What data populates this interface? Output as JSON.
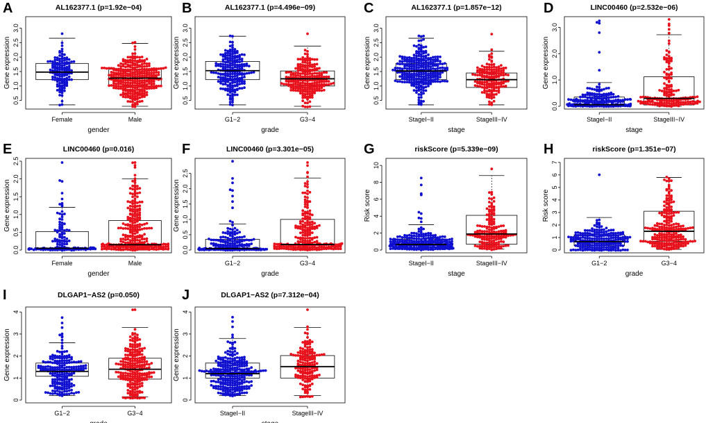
{
  "figure": {
    "colors": {
      "group1": "#1010d0",
      "group2": "#e8101a",
      "box": "#000000"
    },
    "chart_data": [
      {
        "panel": "A",
        "type": "boxplot-beeswarm",
        "title": "AL162377.1 (p=1.92e−04)",
        "xlabel": "gender",
        "ylabel": "Gene expression",
        "categories": [
          "Female",
          "Male"
        ],
        "ylim": [
          0.3,
          3.3
        ],
        "yticks": [
          0.5,
          1.0,
          1.5,
          2.0,
          2.5,
          3.0
        ],
        "yticklabels": [
          "0.5",
          "1.0",
          "1.5",
          "2.0",
          "2.5",
          "3.0"
        ],
        "series": [
          {
            "name": "Female",
            "box": {
              "min": 0.35,
              "q1": 1.22,
              "median": 1.48,
              "q3": 1.78,
              "max": 2.65
            },
            "points_min": 0.35,
            "points_max": 2.82,
            "n": 130
          },
          {
            "name": "Male",
            "box": {
              "min": 0.3,
              "q1": 1.0,
              "median": 1.27,
              "q3": 1.58,
              "max": 2.47
            },
            "points_min": 0.28,
            "points_max": 2.5,
            "n": 330
          }
        ]
      },
      {
        "panel": "B",
        "type": "boxplot-beeswarm",
        "title": "AL162377.1 (p=4.496e−09)",
        "xlabel": "grade",
        "ylabel": "Gene expression",
        "categories": [
          "G1−2",
          "G3−4"
        ],
        "ylim": [
          0.3,
          3.3
        ],
        "yticks": [
          0.5,
          1.0,
          1.5,
          2.0,
          2.5,
          3.0
        ],
        "yticklabels": [
          "0.5",
          "1.0",
          "1.5",
          "2.0",
          "2.5",
          "3.0"
        ],
        "series": [
          {
            "name": "G1−2",
            "box": {
              "min": 0.35,
              "q1": 1.22,
              "median": 1.53,
              "q3": 1.85,
              "max": 2.72
            },
            "points_min": 0.35,
            "points_max": 2.72,
            "n": 220
          },
          {
            "name": "G3−4",
            "box": {
              "min": 0.3,
              "q1": 1.0,
              "median": 1.25,
              "q3": 1.52,
              "max": 2.38
            },
            "points_min": 0.28,
            "points_max": 2.8,
            "n": 240
          }
        ]
      },
      {
        "panel": "C",
        "type": "boxplot-beeswarm",
        "title": "AL162377.1 (p=1.857e−12)",
        "xlabel": "stage",
        "ylabel": "Gene expression",
        "categories": [
          "StageI−II",
          "StageIII−IV"
        ],
        "ylim": [
          0.3,
          3.3
        ],
        "yticks": [
          0.5,
          1.0,
          1.5,
          2.0,
          2.5,
          3.0
        ],
        "yticklabels": [
          "0.5",
          "1.0",
          "1.5",
          "2.0",
          "2.5",
          "3.0"
        ],
        "series": [
          {
            "name": "StageI−II",
            "box": {
              "min": 0.35,
              "q1": 1.22,
              "median": 1.52,
              "q3": 1.78,
              "max": 2.65
            },
            "points_min": 0.35,
            "points_max": 2.72,
            "n": 300
          },
          {
            "name": "StageIII−IV",
            "box": {
              "min": 0.35,
              "q1": 0.95,
              "median": 1.22,
              "q3": 1.45,
              "max": 2.2
            },
            "points_min": 0.35,
            "points_max": 2.8,
            "n": 170
          }
        ]
      },
      {
        "panel": "D",
        "type": "boxplot-beeswarm",
        "title": "LINC00460 (p=2.532e−06)",
        "xlabel": "stage",
        "ylabel": "Gene expression",
        "categories": [
          "StageI−II",
          "StageIII−IV"
        ],
        "ylim": [
          0,
          3.3
        ],
        "yticks": [
          0.0,
          1.0,
          2.0,
          3.0
        ],
        "yticklabels": [
          "0.0",
          "1.0",
          "2.0",
          "3.0"
        ],
        "series": [
          {
            "name": "StageI−II",
            "box": {
              "min": 0.0,
              "q1": 0.02,
              "median": 0.06,
              "q3": 0.35,
              "max": 0.9
            },
            "points_min": 0.0,
            "points_max": 3.25,
            "n": 280
          },
          {
            "name": "StageIII−IV",
            "box": {
              "min": 0.0,
              "q1": 0.05,
              "median": 0.3,
              "q3": 1.12,
              "max": 2.72
            },
            "points_min": 0.0,
            "points_max": 3.3,
            "n": 180
          }
        ]
      },
      {
        "panel": "E",
        "type": "boxplot-beeswarm",
        "title": "LINC00460 (p=0.016)",
        "xlabel": "gender",
        "ylabel": "Gene expression",
        "categories": [
          "Female",
          "Male"
        ],
        "ylim": [
          0,
          2.5
        ],
        "yticks": [
          0.0,
          0.5,
          1.0,
          1.5,
          2.0,
          2.5
        ],
        "yticklabels": [
          "0.0",
          "0.5",
          "1.0",
          "1.5",
          "2.0",
          "2.5"
        ],
        "series": [
          {
            "name": "Female",
            "box": {
              "min": 0.0,
              "q1": 0.02,
              "median": 0.05,
              "q3": 0.52,
              "max": 1.2
            },
            "points_min": 0.0,
            "points_max": 2.45,
            "n": 140
          },
          {
            "name": "Male",
            "box": {
              "min": 0.0,
              "q1": 0.03,
              "median": 0.15,
              "q3": 0.83,
              "max": 2.0
            },
            "points_min": 0.0,
            "points_max": 2.45,
            "n": 320
          }
        ]
      },
      {
        "panel": "F",
        "type": "boxplot-beeswarm",
        "title": "LINC00460 (p=3.301e−05)",
        "xlabel": "grade",
        "ylabel": "Gene expression",
        "categories": [
          "G1−2",
          "G3−4"
        ],
        "ylim": [
          0,
          2.9
        ],
        "yticks": [
          0.0,
          0.5,
          1.0,
          1.5,
          2.0,
          2.5
        ],
        "yticklabels": [
          "0.0",
          "0.5",
          "1.0",
          "1.5",
          "2.0",
          "2.5"
        ],
        "series": [
          {
            "name": "G1−2",
            "box": {
              "min": 0.0,
              "q1": 0.02,
              "median": 0.05,
              "q3": 0.35,
              "max": 0.85
            },
            "points_min": 0.0,
            "points_max": 2.9,
            "n": 230
          },
          {
            "name": "G3−4",
            "box": {
              "min": 0.0,
              "q1": 0.04,
              "median": 0.18,
              "q3": 1.0,
              "max": 2.35
            },
            "points_min": 0.0,
            "points_max": 2.85,
            "n": 240
          }
        ]
      },
      {
        "panel": "G",
        "type": "boxplot-beeswarm",
        "title": "riskScore (p=5.339e−09)",
        "xlabel": "stage",
        "ylabel": "Risk score",
        "categories": [
          "StageI−II",
          "StageIII−IV"
        ],
        "ylim": [
          0,
          10.5
        ],
        "yticks": [
          0,
          2,
          4,
          6,
          8,
          10
        ],
        "yticklabels": [
          "0",
          "2",
          "4",
          "6",
          "8",
          "10"
        ],
        "series": [
          {
            "name": "StageI−II",
            "box": {
              "min": 0.05,
              "q1": 0.3,
              "median": 0.65,
              "q3": 1.3,
              "max": 3.0
            },
            "points_min": 0.0,
            "points_max": 8.5,
            "n": 300
          },
          {
            "name": "StageIII−IV",
            "box": {
              "min": 0.1,
              "q1": 0.7,
              "median": 1.9,
              "q3": 4.1,
              "max": 8.8
            },
            "points_min": 0.05,
            "points_max": 9.6,
            "n": 170
          }
        ]
      },
      {
        "panel": "H",
        "type": "boxplot-beeswarm",
        "title": "riskScore (p=1.351e−07)",
        "xlabel": "grade",
        "ylabel": "Risk score",
        "categories": [
          "G1−2",
          "G3−4"
        ],
        "ylim": [
          0,
          7.1
        ],
        "yticks": [
          0,
          1,
          2,
          3,
          4,
          5,
          6,
          7
        ],
        "yticklabels": [
          "0",
          "1",
          "2",
          "3",
          "4",
          "5",
          "6",
          "7"
        ],
        "series": [
          {
            "name": "G1−2",
            "box": {
              "min": 0.05,
              "q1": 0.35,
              "median": 0.68,
              "q3": 1.22,
              "max": 2.6
            },
            "points_min": 0.0,
            "points_max": 6.0,
            "n": 230
          },
          {
            "name": "G3−4",
            "box": {
              "min": 0.05,
              "q1": 0.7,
              "median": 1.5,
              "q3": 3.1,
              "max": 5.8
            },
            "points_min": 0.05,
            "points_max": 5.8,
            "n": 240
          }
        ]
      },
      {
        "panel": "I",
        "type": "boxplot-beeswarm",
        "title": "DLGAP1−AS2 (p=0.050)",
        "xlabel": "grade",
        "ylabel": "Gene expression",
        "categories": [
          "G1−2",
          "G3−4"
        ],
        "ylim": [
          0,
          4.1
        ],
        "yticks": [
          0,
          1,
          2,
          3,
          4
        ],
        "yticklabels": [
          "0",
          "1",
          "2",
          "3",
          "4"
        ],
        "series": [
          {
            "name": "G1−2",
            "box": {
              "min": 0.2,
              "q1": 1.08,
              "median": 1.3,
              "q3": 1.68,
              "max": 2.6
            },
            "points_min": 0.2,
            "points_max": 3.75,
            "n": 220
          },
          {
            "name": "G3−4",
            "box": {
              "min": 0.15,
              "q1": 0.95,
              "median": 1.4,
              "q3": 1.9,
              "max": 3.3
            },
            "points_min": 0.1,
            "points_max": 4.1,
            "n": 240
          }
        ]
      },
      {
        "panel": "J",
        "type": "boxplot-beeswarm",
        "title": "DLGAP1−AS2 (p=7.312e−04)",
        "xlabel": "stage",
        "ylabel": "Gene expression",
        "categories": [
          "StageI−II",
          "StageIII−IV"
        ],
        "ylim": [
          0,
          4.1
        ],
        "yticks": [
          0,
          1,
          2,
          3,
          4
        ],
        "yticklabels": [
          "0",
          "1",
          "2",
          "3",
          "4"
        ],
        "series": [
          {
            "name": "StageI−II",
            "box": {
              "min": 0.2,
              "q1": 1.0,
              "median": 1.2,
              "q3": 1.68,
              "max": 2.8
            },
            "points_min": 0.2,
            "points_max": 3.75,
            "n": 300
          },
          {
            "name": "StageIII−IV",
            "box": {
              "min": 0.2,
              "q1": 1.0,
              "median": 1.52,
              "q3": 2.02,
              "max": 3.3
            },
            "points_min": 0.15,
            "points_max": 4.1,
            "n": 170
          }
        ]
      }
    ]
  }
}
